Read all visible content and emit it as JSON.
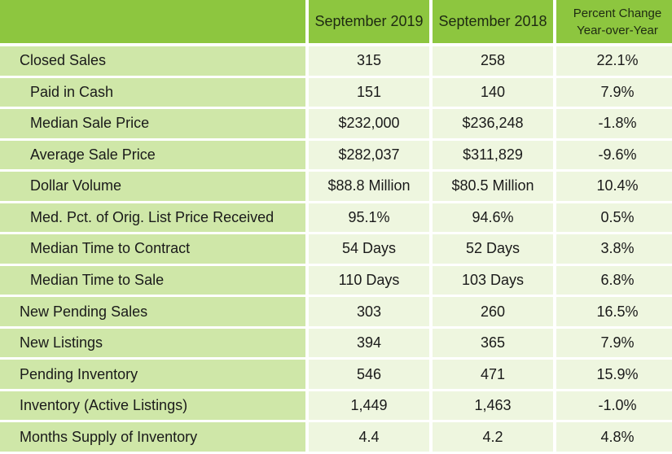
{
  "table": {
    "headers": [
      "",
      "September 2019",
      "September 2018",
      "Percent Change Year-over-Year"
    ],
    "header_change_lines": [
      "Percent Change",
      "Year-over-Year"
    ],
    "rows": [
      {
        "label": "Closed Sales",
        "sub": false,
        "values": [
          "315",
          "258",
          "22.1%"
        ]
      },
      {
        "label": "Paid in Cash",
        "sub": true,
        "values": [
          "151",
          "140",
          "7.9%"
        ]
      },
      {
        "label": "Median Sale Price",
        "sub": true,
        "values": [
          "$232,000",
          "$236,248",
          "-1.8%"
        ]
      },
      {
        "label": "Average Sale Price",
        "sub": true,
        "values": [
          "$282,037",
          "$311,829",
          "-9.6%"
        ]
      },
      {
        "label": "Dollar Volume",
        "sub": true,
        "values": [
          "$88.8 Million",
          "$80.5 Million",
          "10.4%"
        ]
      },
      {
        "label": "Med. Pct. of Orig. List Price Received",
        "sub": true,
        "values": [
          "95.1%",
          "94.6%",
          "0.5%"
        ]
      },
      {
        "label": "Median Time to Contract",
        "sub": true,
        "values": [
          "54 Days",
          "52 Days",
          "3.8%"
        ]
      },
      {
        "label": "Median Time to Sale",
        "sub": true,
        "values": [
          "110 Days",
          "103 Days",
          "6.8%"
        ]
      },
      {
        "label": "New Pending Sales",
        "sub": false,
        "values": [
          "303",
          "260",
          "16.5%"
        ]
      },
      {
        "label": "New Listings",
        "sub": false,
        "values": [
          "394",
          "365",
          "7.9%"
        ]
      },
      {
        "label": "Pending Inventory",
        "sub": false,
        "values": [
          "546",
          "471",
          "15.9%"
        ]
      },
      {
        "label": "Inventory (Active Listings)",
        "sub": false,
        "values": [
          "1,449",
          "1,463",
          "-1.0%"
        ]
      },
      {
        "label": "Months Supply of Inventory",
        "sub": false,
        "values": [
          "4.4",
          "4.2",
          "4.8%"
        ]
      }
    ]
  },
  "colors": {
    "header_bg": "#8dc63f",
    "label_bg": "#cfe7a8",
    "value_bg": "#eef6df"
  }
}
